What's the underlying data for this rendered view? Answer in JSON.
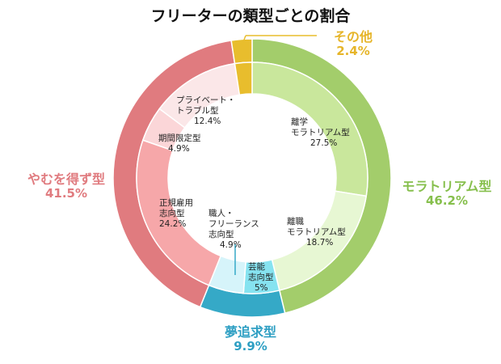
{
  "title": "フリーターの類型ごとの割合",
  "chart_data": {
    "type": "pie",
    "outer": [
      {
        "name": "モラトリアム型",
        "value": 46.2,
        "label": "46.2%",
        "color": "#a3cd6b",
        "label_color": "#86bf4c"
      },
      {
        "name": "夢追求型",
        "value": 9.9,
        "label": "9.9%",
        "color": "#35a9c7",
        "label_color": "#2e9fc3"
      },
      {
        "name": "やむを得ず型",
        "value": 41.5,
        "label": "41.5%",
        "color": "#e07b7f",
        "label_color": "#e07b7f"
      },
      {
        "name": "その他",
        "value": 2.4,
        "label": "2.4%",
        "color": "#e8bd2d",
        "label_color": "#e6b52a"
      }
    ],
    "inner": [
      {
        "lines": [
          "離学",
          "モラトリアム型"
        ],
        "value": 27.5,
        "label": "27.5%",
        "color": "#c9e79c"
      },
      {
        "lines": [
          "離職",
          "モラトリアム型"
        ],
        "value": 18.7,
        "label": "18.7%",
        "color": "#e7f7d3"
      },
      {
        "lines": [
          "芸能",
          "志向型"
        ],
        "value": 5.0,
        "label": "5%",
        "color": "#86e3f0"
      },
      {
        "lines": [
          "職人・",
          "フリーランス",
          "志向型"
        ],
        "value": 4.9,
        "label": "4.9%",
        "color": "#d6f4fa"
      },
      {
        "lines": [
          "正規雇用",
          "志向型"
        ],
        "value": 24.2,
        "label": "24.2%",
        "color": "#f6a7a9"
      },
      {
        "lines": [
          "期間限定型"
        ],
        "value": 4.9,
        "label": "4.9%",
        "color": "#fbd6d8"
      },
      {
        "lines": [
          "プライベート・",
          "トラブル型"
        ],
        "value": 12.4,
        "label": "12.4%",
        "color": "#fbe7e8"
      },
      {
        "lines": [],
        "value": 2.4,
        "label": "",
        "color": "#e8bd2d"
      }
    ]
  }
}
